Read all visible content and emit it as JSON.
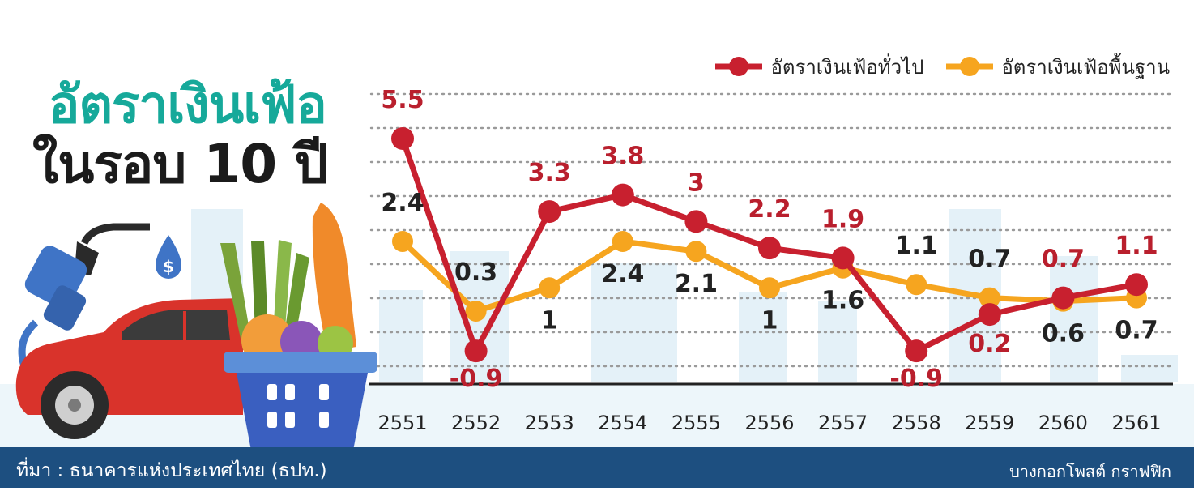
{
  "header": {
    "title_line1": "อัตราเงินเฟ้อ",
    "title_line2": "ในรอบ 10 ปี"
  },
  "legend": {
    "items": [
      {
        "label": "อัตราเงินเฟ้อทั่วไป",
        "color": "#c8202f"
      },
      {
        "label": "อัตราเงินเฟ้อพื้นฐาน",
        "color": "#f6a51f"
      }
    ]
  },
  "footer": {
    "source": "ที่มา : ธนาคารแห่งประเทศไทย (ธปท.)",
    "credit": "บางกอกโพสต์ กราฟฟิก"
  },
  "chart_data": {
    "type": "line",
    "categories": [
      "2551",
      "2552",
      "2553",
      "2554",
      "2555",
      "2556",
      "2557",
      "2558",
      "2559",
      "2560",
      "2561"
    ],
    "series": [
      {
        "name": "อัตราเงินเฟ้อทั่วไป",
        "color": "#c8202f",
        "values": [
          5.5,
          -0.9,
          3.3,
          3.8,
          3,
          2.2,
          1.9,
          -0.9,
          0.2,
          0.7,
          1.1
        ],
        "labels": [
          "5.5",
          "-0.9",
          "3.3",
          "3.8",
          "3",
          "2.2",
          "1.9",
          "-0.9",
          "0.2",
          "0.7",
          "1.1"
        ]
      },
      {
        "name": "อัตราเงินเฟ้อพื้นฐาน",
        "color": "#f6a51f",
        "values": [
          2.4,
          0.3,
          1,
          2.4,
          2.1,
          1,
          1.6,
          1.1,
          0.7,
          0.6,
          0.7
        ],
        "labels": [
          "2.4",
          "0.3",
          "1",
          "2.4",
          "2.1",
          "1",
          "1.6",
          "1.1",
          "0.7",
          "0.6",
          "0.7"
        ]
      }
    ],
    "ylim": [
      -1.8,
      6.5
    ],
    "grid": true,
    "legend_position": "top-right"
  }
}
